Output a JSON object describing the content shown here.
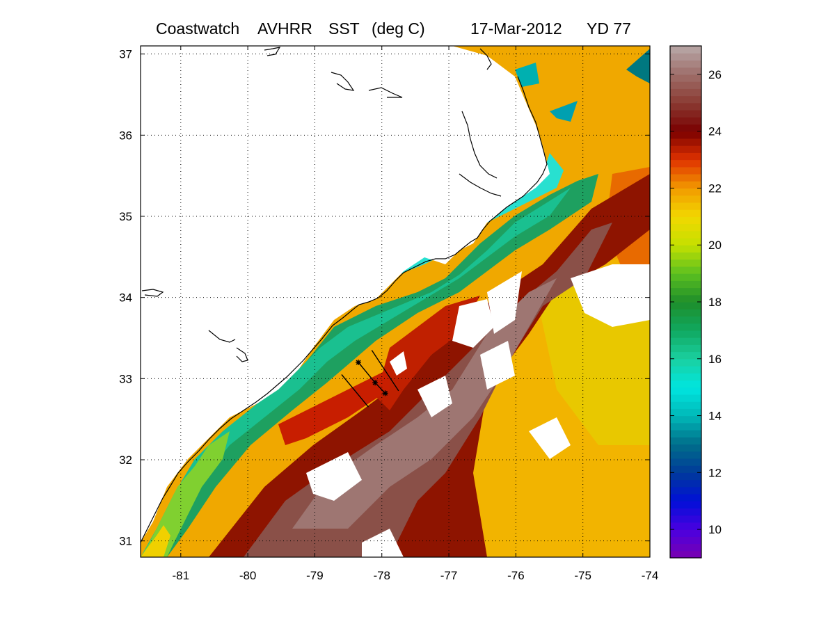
{
  "title": {
    "source": "Coastwatch",
    "sensor": "AVHRR",
    "product": "SST",
    "units": "(deg C)",
    "date": "17-Mar-2012",
    "yearday": "YD 77"
  },
  "map": {
    "lon_range": [
      -81.6,
      -74.0
    ],
    "lat_range": [
      30.8,
      37.1
    ],
    "lon_ticks": [
      -81,
      -80,
      -79,
      -78,
      -77,
      -76,
      -75,
      -74
    ],
    "lat_ticks": [
      31,
      32,
      33,
      34,
      35,
      36,
      37
    ],
    "grid": "dotted",
    "cruise_track": {
      "line_a": [
        [
          -78.6,
          33.05
        ],
        [
          -78.2,
          32.65
        ]
      ],
      "line_b": [
        [
          -78.15,
          33.35
        ],
        [
          -77.75,
          32.85
        ]
      ],
      "stations": [
        [
          -78.35,
          33.2
        ],
        [
          -78.1,
          32.95
        ],
        [
          -77.95,
          32.82
        ]
      ]
    }
  },
  "colorbar": {
    "range": [
      9,
      27
    ],
    "ticks": [
      10,
      12,
      14,
      16,
      18,
      20,
      22,
      24,
      26
    ],
    "colormap": [
      [
        9,
        "#7a00b0"
      ],
      [
        10,
        "#4a00e0"
      ],
      [
        11,
        "#0010d8"
      ],
      [
        12,
        "#003a9a"
      ],
      [
        13,
        "#006e8a"
      ],
      [
        14,
        "#00b8b8"
      ],
      [
        15,
        "#00e6e0"
      ],
      [
        16,
        "#1ad0a0"
      ],
      [
        17,
        "#10a860"
      ],
      [
        18,
        "#1e8e2a"
      ],
      [
        19,
        "#5cc020"
      ],
      [
        20,
        "#c4e000"
      ],
      [
        21,
        "#f2d800"
      ],
      [
        22,
        "#f29a00"
      ],
      [
        23,
        "#e03200"
      ],
      [
        24,
        "#7a0000"
      ],
      [
        25,
        "#8a3a32"
      ],
      [
        26,
        "#9e6e6a"
      ],
      [
        27,
        "#b8a8a8"
      ]
    ]
  },
  "colors": {
    "frame": "#000000",
    "coastline": "#000000",
    "land": "#ffffff",
    "cloud": "#ffffff"
  }
}
